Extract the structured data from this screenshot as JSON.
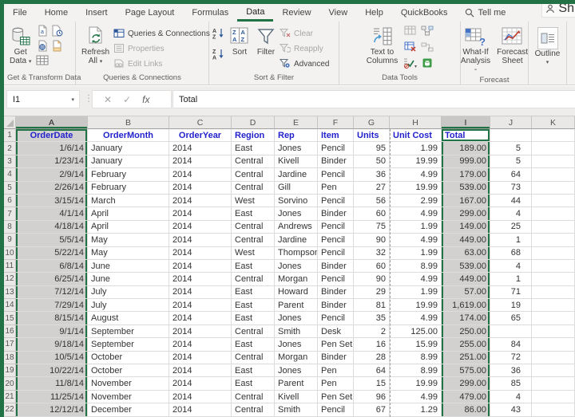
{
  "colors": {
    "accent_green": "#217346",
    "header_text_blue": "#2222cc",
    "selection_fill": "#d2d1d0"
  },
  "window": {
    "tell_me": "Tell me",
    "share": "Sh"
  },
  "ribbon": {
    "tabs": [
      "File",
      "Home",
      "Insert",
      "Page Layout",
      "Formulas",
      "Data",
      "Review",
      "View",
      "Help",
      "QuickBooks"
    ],
    "active_tab": "Data",
    "groups": {
      "get_transform": {
        "label": "Get & Transform Data",
        "get_data_1": "Get",
        "get_data_2": "Data"
      },
      "queries": {
        "label": "Queries & Connections",
        "refresh_1": "Refresh",
        "refresh_2": "All",
        "items": [
          "Queries & Connections",
          "Properties",
          "Edit Links"
        ]
      },
      "sort_filter": {
        "label": "Sort & Filter",
        "sort": "Sort",
        "filter": "Filter",
        "items": [
          "Clear",
          "Reapply",
          "Advanced"
        ]
      },
      "data_tools": {
        "label": "Data Tools",
        "ttc_1": "Text to",
        "ttc_2": "Columns"
      },
      "forecast": {
        "label": "Forecast",
        "what_if_1": "What-If",
        "what_if_2": "Analysis -",
        "fs_1": "Forecast",
        "fs_2": "Sheet"
      },
      "outline": {
        "label": "",
        "button": "Outline"
      }
    }
  },
  "formula_bar": {
    "name_box": "I1",
    "fx": "fx",
    "value": "Total"
  },
  "grid": {
    "col_letters": [
      "A",
      "B",
      "C",
      "D",
      "E",
      "F",
      "G",
      "H",
      "I",
      "J",
      "K"
    ],
    "selected_columns": [
      "A",
      "I"
    ],
    "active_cell": "I1",
    "header_row": [
      "OrderDate",
      "OrderMonth",
      "OrderYear",
      "Region",
      "Rep",
      "Item",
      "Units",
      "Unit Cost",
      "Total",
      "",
      ""
    ],
    "rows": [
      [
        "1/6/14",
        "January",
        "2014",
        "East",
        "Jones",
        "Pencil",
        "95",
        "1.99",
        "189.00",
        "5",
        ""
      ],
      [
        "1/23/14",
        "January",
        "2014",
        "Central",
        "Kivell",
        "Binder",
        "50",
        "19.99",
        "999.00",
        "5",
        ""
      ],
      [
        "2/9/14",
        "February",
        "2014",
        "Central",
        "Jardine",
        "Pencil",
        "36",
        "4.99",
        "179.00",
        "64",
        ""
      ],
      [
        "2/26/14",
        "February",
        "2014",
        "Central",
        "Gill",
        "Pen",
        "27",
        "19.99",
        "539.00",
        "73",
        ""
      ],
      [
        "3/15/14",
        "March",
        "2014",
        "West",
        "Sorvino",
        "Pencil",
        "56",
        "2.99",
        "167.00",
        "44",
        ""
      ],
      [
        "4/1/14",
        "April",
        "2014",
        "East",
        "Jones",
        "Binder",
        "60",
        "4.99",
        "299.00",
        "4",
        ""
      ],
      [
        "4/18/14",
        "April",
        "2014",
        "Central",
        "Andrews",
        "Pencil",
        "75",
        "1.99",
        "149.00",
        "25",
        ""
      ],
      [
        "5/5/14",
        "May",
        "2014",
        "Central",
        "Jardine",
        "Pencil",
        "90",
        "4.99",
        "449.00",
        "1",
        ""
      ],
      [
        "5/22/14",
        "May",
        "2014",
        "West",
        "Thompson",
        "Pencil",
        "32",
        "1.99",
        "63.00",
        "68",
        ""
      ],
      [
        "6/8/14",
        "June",
        "2014",
        "East",
        "Jones",
        "Binder",
        "60",
        "8.99",
        "539.00",
        "4",
        ""
      ],
      [
        "6/25/14",
        "June",
        "2014",
        "Central",
        "Morgan",
        "Pencil",
        "90",
        "4.99",
        "449.00",
        "1",
        ""
      ],
      [
        "7/12/14",
        "July",
        "2014",
        "East",
        "Howard",
        "Binder",
        "29",
        "1.99",
        "57.00",
        "71",
        ""
      ],
      [
        "7/29/14",
        "July",
        "2014",
        "East",
        "Parent",
        "Binder",
        "81",
        "19.99",
        "1,619.00",
        "19",
        ""
      ],
      [
        "8/15/14",
        "August",
        "2014",
        "East",
        "Jones",
        "Pencil",
        "35",
        "4.99",
        "174.00",
        "65",
        ""
      ],
      [
        "9/1/14",
        "September",
        "2014",
        "Central",
        "Smith",
        "Desk",
        "2",
        "125.00",
        "250.00",
        "",
        ""
      ],
      [
        "9/18/14",
        "September",
        "2014",
        "East",
        "Jones",
        "Pen Set",
        "16",
        "15.99",
        "255.00",
        "84",
        ""
      ],
      [
        "10/5/14",
        "October",
        "2014",
        "Central",
        "Morgan",
        "Binder",
        "28",
        "8.99",
        "251.00",
        "72",
        ""
      ],
      [
        "10/22/14",
        "October",
        "2014",
        "East",
        "Jones",
        "Pen",
        "64",
        "8.99",
        "575.00",
        "36",
        ""
      ],
      [
        "11/8/14",
        "November",
        "2014",
        "East",
        "Parent",
        "Pen",
        "15",
        "19.99",
        "299.00",
        "85",
        ""
      ],
      [
        "11/25/14",
        "November",
        "2014",
        "Central",
        "Kivell",
        "Pen Set",
        "96",
        "4.99",
        "479.00",
        "4",
        ""
      ],
      [
        "12/12/14",
        "December",
        "2014",
        "Central",
        "Smith",
        "Pencil",
        "67",
        "1.29",
        "86.00",
        "43",
        ""
      ]
    ]
  }
}
